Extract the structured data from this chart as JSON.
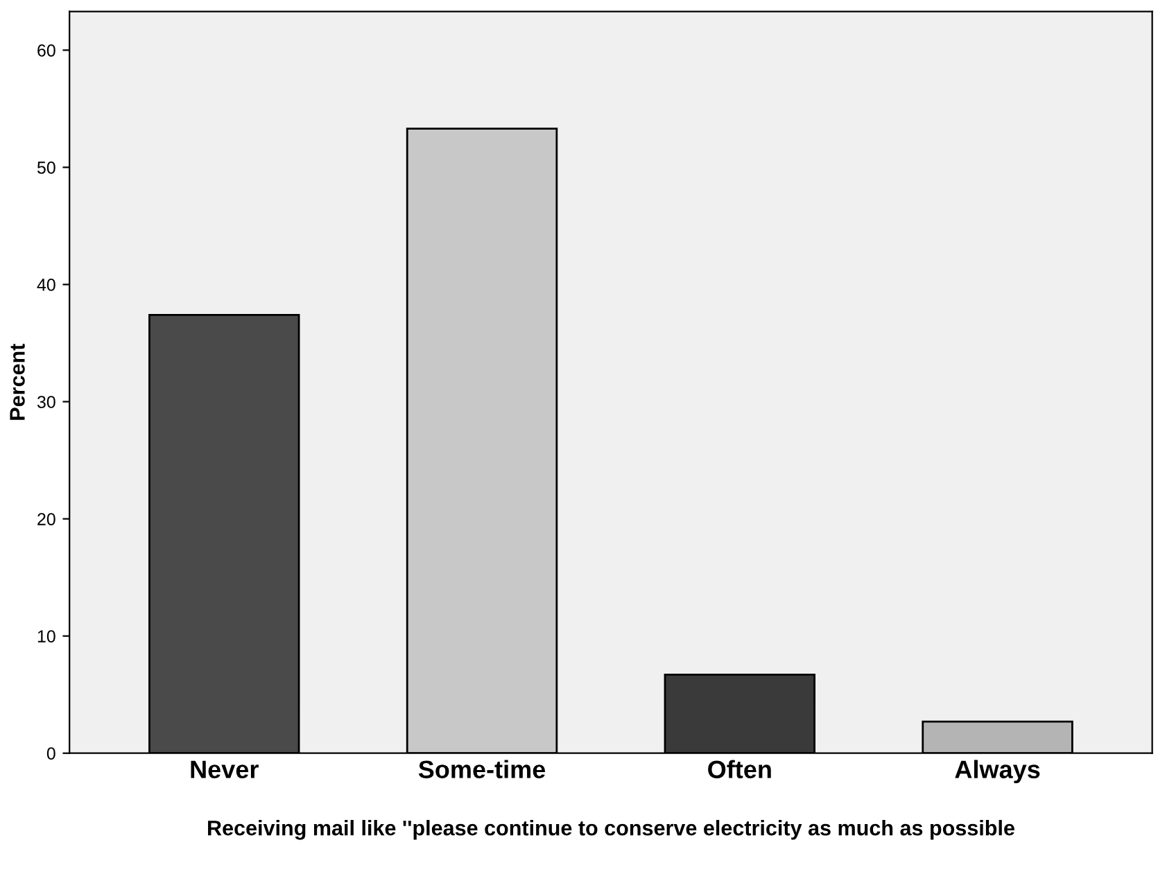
{
  "chart_data": {
    "type": "bar",
    "categories": [
      "Never",
      "Some-time",
      "Often",
      "Always"
    ],
    "values": [
      37.4,
      53.3,
      6.7,
      2.7
    ],
    "colors": [
      "#4a4a4a",
      "#c8c8c8",
      "#3a3a3a",
      "#b4b4b4"
    ],
    "xlabel": "Receiving mail like ''please continue to conserve electricity as much as possible",
    "ylabel": "Percent",
    "ylim": [
      0,
      63.3
    ],
    "yticks": [
      0,
      10,
      20,
      30,
      40,
      50,
      60
    ],
    "grid": false
  }
}
